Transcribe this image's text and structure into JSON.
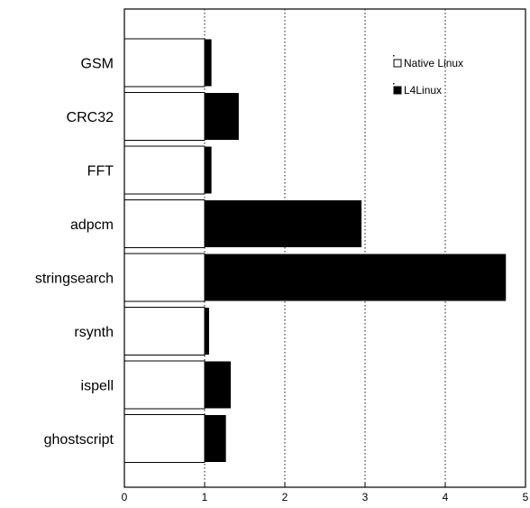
{
  "chart_data": {
    "type": "bar",
    "orientation": "horizontal",
    "categories": [
      "GSM",
      "CRC32",
      "FFT",
      "adpcm",
      "stringsearch",
      "rsynth",
      "ispell",
      "ghostscript"
    ],
    "series": [
      {
        "name": "Native Linux",
        "values": [
          1,
          1,
          1,
          1,
          1,
          1,
          1,
          1
        ],
        "color": "#ffffff"
      },
      {
        "name": "L4Linux",
        "values": [
          1.08,
          1.42,
          1.08,
          2.95,
          4.75,
          1.05,
          1.32,
          1.26
        ],
        "color": "#000000"
      }
    ],
    "xlim": [
      0,
      5
    ],
    "xticks": [
      "0",
      "1",
      "2",
      "3",
      "4",
      "5"
    ],
    "grid": "vertical-dotted",
    "legend": "top-right",
    "title": "",
    "xlabel": "",
    "ylabel": ""
  }
}
